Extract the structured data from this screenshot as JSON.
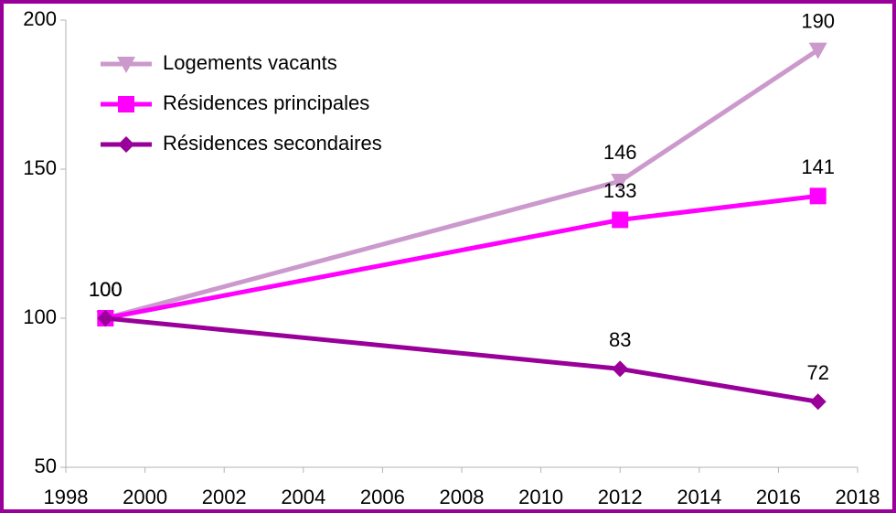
{
  "chart_data": {
    "type": "line",
    "x": [
      1999,
      2012,
      2017
    ],
    "series": [
      {
        "name": "Logements vacants",
        "color": "#cc99cc",
        "marker": "triangle-down",
        "values": [
          100,
          146,
          190
        ]
      },
      {
        "name": "Résidences principales",
        "color": "#ff00ff",
        "marker": "square",
        "values": [
          100,
          133,
          141
        ]
      },
      {
        "name": "Résidences secondaires",
        "color": "#990099",
        "marker": "diamond",
        "values": [
          100,
          83,
          72
        ]
      }
    ],
    "xlim": [
      1998,
      2018
    ],
    "xticks": [
      1998,
      2000,
      2002,
      2004,
      2006,
      2008,
      2010,
      2012,
      2014,
      2016,
      2018
    ],
    "ylim": [
      50,
      200
    ],
    "yticks": [
      50,
      100,
      150,
      200
    ],
    "grid": false,
    "legend": "top-left"
  }
}
